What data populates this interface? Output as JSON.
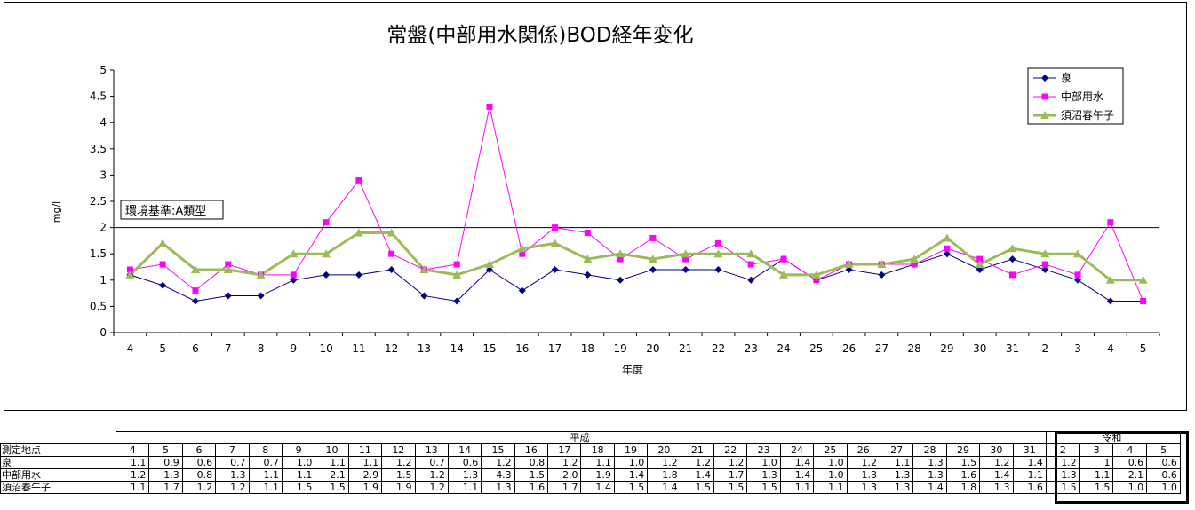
{
  "chart_data": {
    "type": "line",
    "title": "常盤(中部用水関係)BOD経年変化",
    "xlabel": "年度",
    "ylabel": "mg/l",
    "ylim": [
      0,
      5
    ],
    "yticks": [
      "0",
      "0.5",
      "1",
      "1.5",
      "2",
      "2.5",
      "3",
      "3.5",
      "4",
      "4.5",
      "5"
    ],
    "categories": [
      "4",
      "5",
      "6",
      "7",
      "8",
      "9",
      "10",
      "11",
      "12",
      "13",
      "14",
      "15",
      "16",
      "17",
      "18",
      "19",
      "20",
      "21",
      "22",
      "23",
      "24",
      "25",
      "26",
      "27",
      "28",
      "29",
      "30",
      "31",
      "2",
      "3",
      "4",
      "5"
    ],
    "legend_position": "top-right",
    "reference_line": {
      "value": 2,
      "label": "環境基準:A類型"
    },
    "series": [
      {
        "name": "泉",
        "color": "#000080",
        "marker": "diamond",
        "values": [
          1.1,
          0.9,
          0.6,
          0.7,
          0.7,
          1.0,
          1.1,
          1.1,
          1.2,
          0.7,
          0.6,
          1.2,
          0.8,
          1.2,
          1.1,
          1.0,
          1.2,
          1.2,
          1.2,
          1.0,
          1.4,
          1.0,
          1.2,
          1.1,
          1.3,
          1.5,
          1.2,
          1.4,
          1.2,
          1.0,
          0.6,
          0.6
        ]
      },
      {
        "name": "中部用水",
        "color": "#ff00ff",
        "marker": "square",
        "values": [
          1.2,
          1.3,
          0.8,
          1.3,
          1.1,
          1.1,
          2.1,
          2.9,
          1.5,
          1.2,
          1.3,
          4.3,
          1.5,
          2.0,
          1.9,
          1.4,
          1.8,
          1.4,
          1.7,
          1.3,
          1.4,
          1.0,
          1.3,
          1.3,
          1.3,
          1.6,
          1.4,
          1.1,
          1.3,
          1.1,
          2.1,
          0.6
        ]
      },
      {
        "name": "須沼春午子",
        "color": "#9bbb59",
        "marker": "triangle",
        "values": [
          1.1,
          1.7,
          1.2,
          1.2,
          1.1,
          1.5,
          1.5,
          1.9,
          1.9,
          1.2,
          1.1,
          1.3,
          1.6,
          1.7,
          1.4,
          1.5,
          1.4,
          1.5,
          1.5,
          1.5,
          1.1,
          1.1,
          1.3,
          1.3,
          1.4,
          1.8,
          1.3,
          1.6,
          1.5,
          1.5,
          1.0,
          1.0
        ]
      }
    ]
  },
  "table": {
    "era_heisei": "平成",
    "era_reiwa": "令和",
    "header_label": "測定地点",
    "years": [
      "4",
      "5",
      "6",
      "7",
      "8",
      "9",
      "10",
      "11",
      "12",
      "13",
      "14",
      "15",
      "16",
      "17",
      "18",
      "19",
      "20",
      "21",
      "22",
      "23",
      "24",
      "25",
      "26",
      "27",
      "28",
      "29",
      "30",
      "31",
      "2",
      "3",
      "4",
      "5"
    ],
    "rows": [
      {
        "label": "泉",
        "cells": [
          "1.1",
          "0.9",
          "0.6",
          "0.7",
          "0.7",
          "1.0",
          "1.1",
          "1.1",
          "1.2",
          "0.7",
          "0.6",
          "1.2",
          "0.8",
          "1.2",
          "1.1",
          "1.0",
          "1.2",
          "1.2",
          "1.2",
          "1.0",
          "1.4",
          "1.0",
          "1.2",
          "1.1",
          "1.3",
          "1.5",
          "1.2",
          "1.4",
          "1.2",
          "1",
          "0.6",
          "0.6"
        ]
      },
      {
        "label": "中部用水",
        "cells": [
          "1.2",
          "1.3",
          "0.8",
          "1.3",
          "1.1",
          "1.1",
          "2.1",
          "2.9",
          "1.5",
          "1.2",
          "1.3",
          "4.3",
          "1.5",
          "2.0",
          "1.9",
          "1.4",
          "1.8",
          "1.4",
          "1.7",
          "1.3",
          "1.4",
          "1.0",
          "1.3",
          "1.3",
          "1.3",
          "1.6",
          "1.4",
          "1.1",
          "1.3",
          "1.1",
          "2.1",
          "0.6"
        ]
      },
      {
        "label": "須沼春午子",
        "cells": [
          "1.1",
          "1.7",
          "1.2",
          "1.2",
          "1.1",
          "1.5",
          "1.5",
          "1.9",
          "1.9",
          "1.2",
          "1.1",
          "1.3",
          "1.6",
          "1.7",
          "1.4",
          "1.5",
          "1.4",
          "1.5",
          "1.5",
          "1.5",
          "1.1",
          "1.1",
          "1.3",
          "1.3",
          "1.4",
          "1.8",
          "1.3",
          "1.6",
          "1.5",
          "1.5",
          "1.0",
          "1.0"
        ]
      }
    ]
  }
}
